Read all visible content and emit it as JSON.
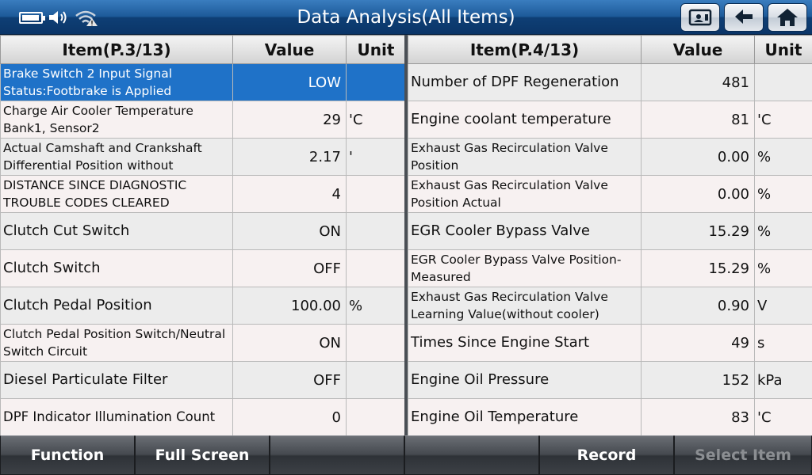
{
  "header": {
    "title": "Data Analysis(All Items)"
  },
  "left_table": {
    "columns": [
      "Item(P.3/13)",
      "Value",
      "Unit"
    ],
    "rows": [
      {
        "item": "Brake Switch 2 Input Signal Status:Footbrake is Applied",
        "value": "LOW",
        "unit": ""
      },
      {
        "item": "Charge Air Cooler Temperature Bank1, Sensor2",
        "value": "29",
        "unit": "'C"
      },
      {
        "item": "Actual Camshaft and Crankshaft Differential Position without",
        "value": "2.17",
        "unit": "'"
      },
      {
        "item": "DISTANCE SINCE DIAGNOSTIC TROUBLE CODES CLEARED",
        "value": "4",
        "unit": ""
      },
      {
        "item": "Clutch Cut Switch",
        "value": "ON",
        "unit": ""
      },
      {
        "item": "Clutch Switch",
        "value": "OFF",
        "unit": ""
      },
      {
        "item": "Clutch Pedal Position",
        "value": "100.00",
        "unit": "%"
      },
      {
        "item": "Clutch Pedal Position Switch/Neutral Switch Circuit",
        "value": "ON",
        "unit": ""
      },
      {
        "item": "Diesel Particulate Filter",
        "value": "OFF",
        "unit": ""
      },
      {
        "item": "DPF Indicator Illumination Count",
        "value": "0",
        "unit": ""
      }
    ]
  },
  "right_table": {
    "columns": [
      "Item(P.4/13)",
      "Value",
      "Unit"
    ],
    "rows": [
      {
        "item": "Number of DPF Regeneration",
        "value": "481",
        "unit": ""
      },
      {
        "item": "Engine coolant temperature",
        "value": "81",
        "unit": "'C"
      },
      {
        "item": "Exhaust Gas Recirculation Valve Position",
        "value": "0.00",
        "unit": "%"
      },
      {
        "item": "Exhaust Gas Recirculation Valve Position Actual",
        "value": "0.00",
        "unit": "%"
      },
      {
        "item": "EGR Cooler Bypass Valve",
        "value": "15.29",
        "unit": "%"
      },
      {
        "item": "EGR Cooler Bypass Valve Position-Measured",
        "value": "15.29",
        "unit": "%"
      },
      {
        "item": "Exhaust Gas Recirculation Valve Learning Value(without cooler)",
        "value": "0.90",
        "unit": "V"
      },
      {
        "item": "Times Since Engine Start",
        "value": "49",
        "unit": "s"
      },
      {
        "item": "Engine Oil Pressure",
        "value": "152",
        "unit": "kPa"
      },
      {
        "item": "Engine Oil Temperature",
        "value": "83",
        "unit": "'C"
      }
    ]
  },
  "footer": {
    "buttons": [
      "Function",
      "Full Screen",
      "",
      "",
      "Record",
      "Select Item"
    ]
  },
  "colors": {
    "selected_row": "#1f72c8",
    "title_bar": "#1d5a99"
  },
  "icons": [
    "battery-icon",
    "speaker-icon",
    "wifi-warning-icon",
    "screenshot-icon",
    "back-arrow-icon",
    "home-icon"
  ]
}
